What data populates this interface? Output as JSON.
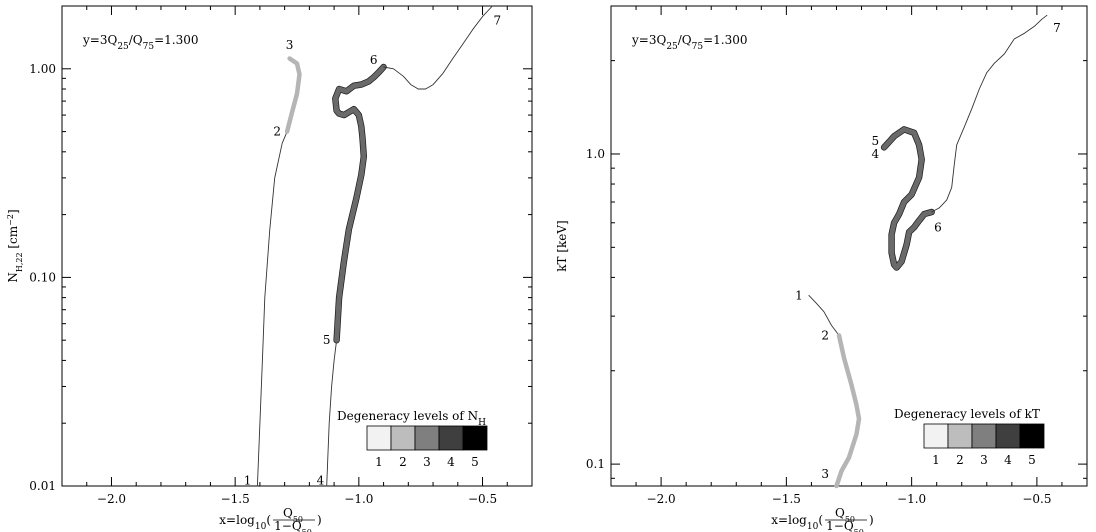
{
  "chart_data": [
    {
      "id": "nh",
      "type": "line",
      "annotation": "y=3Q₂₅/Q₇₅=1.300",
      "xlabel": "x=log₁₀(Q₅₀/1−Q₅₀)",
      "xlabel_parts": {
        "prefix": "x=log",
        "sub": "10",
        "num": "Q",
        "num_sub": "50",
        "den": "1−Q",
        "den_sub": "50"
      },
      "ylabel": "N_H,22 [cm⁻²]",
      "ylabel_parts": {
        "main": "N",
        "sub": "H,22",
        "unit": " [cm",
        "sup": "−2",
        "close": "]"
      },
      "y_scale": "log",
      "xlim": [
        -2.2,
        -0.3
      ],
      "ylim": [
        0.01,
        2.0
      ],
      "x_ticks": [
        -2.0,
        -1.5,
        -1.0,
        -0.5
      ],
      "x_tick_labels": [
        "−2.0",
        "−1.5",
        "−1.0",
        "−0.5"
      ],
      "y_ticks": [
        0.01,
        0.1,
        1.0
      ],
      "y_tick_labels": [
        "0.01",
        "0.10",
        "1.00"
      ],
      "series": [
        {
          "level": 1,
          "x": [
            -1.41,
            -1.4,
            -1.39,
            -1.38,
            -1.36,
            -1.34,
            -1.31,
            -1.29
          ],
          "y": [
            0.01,
            0.02,
            0.04,
            0.08,
            0.17,
            0.3,
            0.44,
            0.5
          ]
        },
        {
          "level": 2,
          "x": [
            -1.29,
            -1.27,
            -1.25,
            -1.24,
            -1.25,
            -1.28
          ],
          "y": [
            0.5,
            0.62,
            0.76,
            0.94,
            1.06,
            1.12
          ]
        },
        {
          "level": 1,
          "x": [
            -1.13,
            -1.125,
            -1.12,
            -1.11,
            -1.1,
            -1.09
          ],
          "y": [
            0.01,
            0.014,
            0.02,
            0.03,
            0.04,
            0.05
          ]
        },
        {
          "level": 4,
          "x": [
            -1.09,
            -1.08,
            -1.06,
            -1.04,
            -1.01,
            -0.99,
            -0.98,
            -0.985,
            -0.99,
            -1.0,
            -1.02,
            -1.04,
            -1.06,
            -1.08,
            -1.09,
            -1.095,
            -1.08,
            -1.05,
            -1.02,
            -0.99,
            -0.96,
            -0.94,
            -0.92,
            -0.9
          ],
          "y": [
            0.05,
            0.08,
            0.12,
            0.17,
            0.24,
            0.31,
            0.38,
            0.46,
            0.53,
            0.6,
            0.64,
            0.62,
            0.6,
            0.61,
            0.63,
            0.72,
            0.8,
            0.78,
            0.83,
            0.84,
            0.87,
            0.91,
            0.96,
            1.02
          ]
        },
        {
          "level": 1,
          "x": [
            -0.9,
            -0.86,
            -0.82,
            -0.79,
            -0.76,
            -0.73,
            -0.7,
            -0.66,
            -0.62,
            -0.58,
            -0.54,
            -0.5,
            -0.46
          ],
          "y": [
            1.02,
            1.0,
            0.92,
            0.84,
            0.8,
            0.8,
            0.84,
            0.95,
            1.12,
            1.31,
            1.54,
            1.78,
            2.0
          ]
        }
      ],
      "point_labels": [
        {
          "text": "1",
          "x": -1.45,
          "y": 0.0106
        },
        {
          "text": "2",
          "x": -1.33,
          "y": 0.5
        },
        {
          "text": "3",
          "x": -1.28,
          "y": 1.3
        },
        {
          "text": "4",
          "x": -1.155,
          "y": 0.0106
        },
        {
          "text": "5",
          "x": -1.13,
          "y": 0.05
        },
        {
          "text": "6",
          "x": -0.94,
          "y": 1.1
        },
        {
          "text": "7",
          "x": -0.44,
          "y": 1.7
        }
      ],
      "legend": {
        "title_main": "Degeneracy levels of N",
        "title_sub": "H",
        "levels": [
          "1",
          "2",
          "3",
          "4",
          "5"
        ],
        "colors": [
          "#f2f2f2",
          "#bdbdbd",
          "#7f7f7f",
          "#3f3f3f",
          "#000000"
        ],
        "placement": "bottom-right"
      }
    },
    {
      "id": "kt",
      "type": "line",
      "annotation": "y=3Q₂₅/Q₇₅=1.300",
      "xlabel": "x=log₁₀(Q₅₀/1−Q₅₀)",
      "xlabel_parts": {
        "prefix": "x=log",
        "sub": "10",
        "num": "Q",
        "num_sub": "50",
        "den": "1−Q",
        "den_sub": "50"
      },
      "ylabel": "kT [keV]",
      "y_scale": "log",
      "xlim": [
        -2.2,
        -0.3
      ],
      "ylim": [
        0.085,
        3.0
      ],
      "x_ticks": [
        -2.0,
        -1.5,
        -1.0,
        -0.5
      ],
      "x_tick_labels": [
        "−2.0",
        "−1.5",
        "−1.0",
        "−0.5"
      ],
      "y_ticks": [
        0.1,
        1.0
      ],
      "y_tick_labels": [
        "0.1",
        "1.0"
      ],
      "series": [
        {
          "level": 1,
          "x": [
            -1.41,
            -1.38,
            -1.35,
            -1.32,
            -1.29
          ],
          "y": [
            0.35,
            0.33,
            0.31,
            0.28,
            0.26
          ]
        },
        {
          "level": 2,
          "x": [
            -1.29,
            -1.27,
            -1.24,
            -1.22,
            -1.21,
            -1.22,
            -1.25,
            -1.28,
            -1.3
          ],
          "y": [
            0.26,
            0.22,
            0.18,
            0.155,
            0.14,
            0.125,
            0.105,
            0.095,
            0.085
          ]
        },
        {
          "level": 4,
          "x": [
            -1.11,
            -1.07,
            -1.03,
            -0.99,
            -0.97,
            -0.96,
            -0.97,
            -1.0,
            -1.03,
            -1.05,
            -1.07,
            -1.08,
            -1.08,
            -1.07,
            -1.06,
            -1.04,
            -1.02,
            -1.01,
            -0.99,
            -0.97,
            -0.95,
            -0.92
          ],
          "y": [
            1.05,
            1.14,
            1.2,
            1.17,
            1.07,
            0.96,
            0.84,
            0.74,
            0.7,
            0.64,
            0.6,
            0.55,
            0.48,
            0.44,
            0.43,
            0.45,
            0.51,
            0.56,
            0.58,
            0.61,
            0.64,
            0.65
          ]
        },
        {
          "level": 1,
          "x": [
            -0.92,
            -0.89,
            -0.86,
            -0.84,
            -0.83,
            -0.82,
            -0.79,
            -0.76,
            -0.73,
            -0.7,
            -0.67,
            -0.63,
            -0.59,
            -0.55,
            -0.51,
            -0.48,
            -0.46
          ],
          "y": [
            0.65,
            0.67,
            0.71,
            0.78,
            0.92,
            1.07,
            1.22,
            1.4,
            1.62,
            1.83,
            1.96,
            2.1,
            2.35,
            2.45,
            2.58,
            2.72,
            2.8
          ]
        }
      ],
      "point_labels": [
        {
          "text": "1",
          "x": -1.45,
          "y": 0.35
        },
        {
          "text": "2",
          "x": -1.345,
          "y": 0.26
        },
        {
          "text": "3",
          "x": -1.345,
          "y": 0.093
        },
        {
          "text": "4",
          "x": -1.145,
          "y": 1.0
        },
        {
          "text": "5",
          "x": -1.145,
          "y": 1.1
        },
        {
          "text": "6",
          "x": -0.895,
          "y": 0.58
        },
        {
          "text": "7",
          "x": -0.42,
          "y": 2.55
        }
      ],
      "legend": {
        "title_main": "Degeneracy levels of kT",
        "title_sub": "",
        "levels": [
          "1",
          "2",
          "3",
          "4",
          "5"
        ],
        "colors": [
          "#f2f2f2",
          "#bdbdbd",
          "#7f7f7f",
          "#3f3f3f",
          "#000000"
        ],
        "placement": "bottom-right"
      }
    }
  ]
}
